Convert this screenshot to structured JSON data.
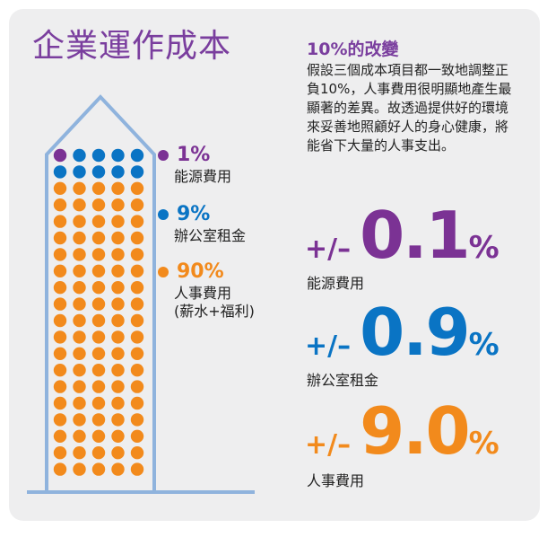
{
  "title": "企業運作成本",
  "legend": [
    {
      "pct": "1%",
      "label": "能源費用",
      "color": "#7b3294"
    },
    {
      "pct": "9%",
      "label": "辦公室租金",
      "color": "#0a74c4"
    },
    {
      "pct": "90%",
      "label": "人事費用",
      "label2": "(薪水+福利)",
      "color": "#f28a1c"
    }
  ],
  "headline": "10%的改變",
  "description": "假設三個成本項目都一致地調整正負10%，人事費用很明顯地產生最顯著的差異。故透過提供好的環境來妥善地照顧好人的身心健康，將能省下大量的人事支出。",
  "stats": [
    {
      "pm": "+/–",
      "value": "0.1",
      "unit": "%",
      "label": "能源費用",
      "color": "#7b3294"
    },
    {
      "pm": "+/–",
      "value": "0.9",
      "unit": "%",
      "label": "辦公室租金",
      "color": "#0a74c4"
    },
    {
      "pm": "+/–",
      "value": "9.0",
      "unit": "%",
      "label": "人事費用",
      "color": "#f28a1c"
    }
  ],
  "chart_data": {
    "type": "waffle",
    "total": 100,
    "columns": 5,
    "series": [
      {
        "name": "能源費用",
        "values": [
          1
        ],
        "color": "#7b3294"
      },
      {
        "name": "辦公室租金",
        "values": [
          9
        ],
        "color": "#0a74c4"
      },
      {
        "name": "人事費用",
        "values": [
          90
        ],
        "color": "#f28a1c"
      }
    ]
  }
}
